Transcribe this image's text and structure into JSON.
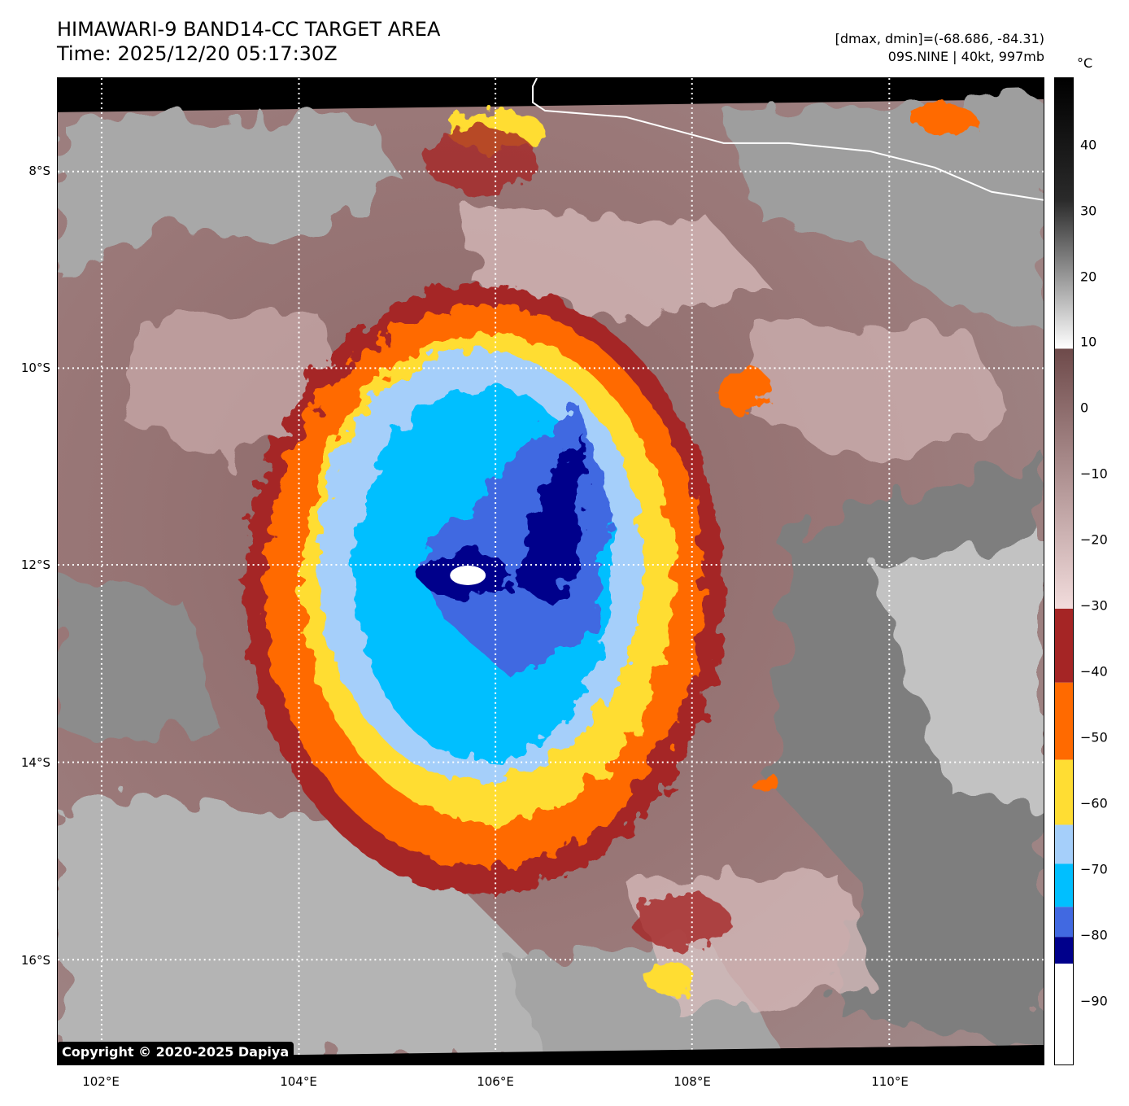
{
  "header": {
    "title_line1": "HIMAWARI-9 BAND14-CC TARGET AREA",
    "title_line2": "Time: 2025/12/20 05:17:30Z",
    "info_line1": "[dmax, dmin]=(-68.686, -84.31)",
    "info_line2": "09S.NINE | 40kt, 997mb"
  },
  "map": {
    "lat_labels": [
      "8°S",
      "10°S",
      "12°S",
      "14°S",
      "16°S"
    ],
    "lon_labels": [
      "102°E",
      "104°E",
      "106°E",
      "108°E",
      "110°E"
    ],
    "copyright": "Copyright © 2020-2025 Dapiya",
    "storm_center": {
      "lon": 105.8,
      "lat": -12.1
    }
  },
  "colorbar": {
    "unit": "°C",
    "ticks": [
      "40",
      "30",
      "20",
      "10",
      "0",
      "−10",
      "−20",
      "−30",
      "−40",
      "−50",
      "−60",
      "−70",
      "−80",
      "−90"
    ],
    "colors": {
      "warm_gray_dark": "#1a1a1a",
      "warm_gray_light": "#f5f5f5",
      "brown_dark": "#6e4a4a",
      "pink_light": "#f2dcdc",
      "red": "#a52525",
      "orange": "#ff6a00",
      "yellow": "#ffdd33",
      "light_blue": "#a5cffa",
      "sky_blue": "#00bfff",
      "royal_blue": "#4169e1",
      "navy": "#00008b",
      "white": "#ffffff"
    }
  }
}
